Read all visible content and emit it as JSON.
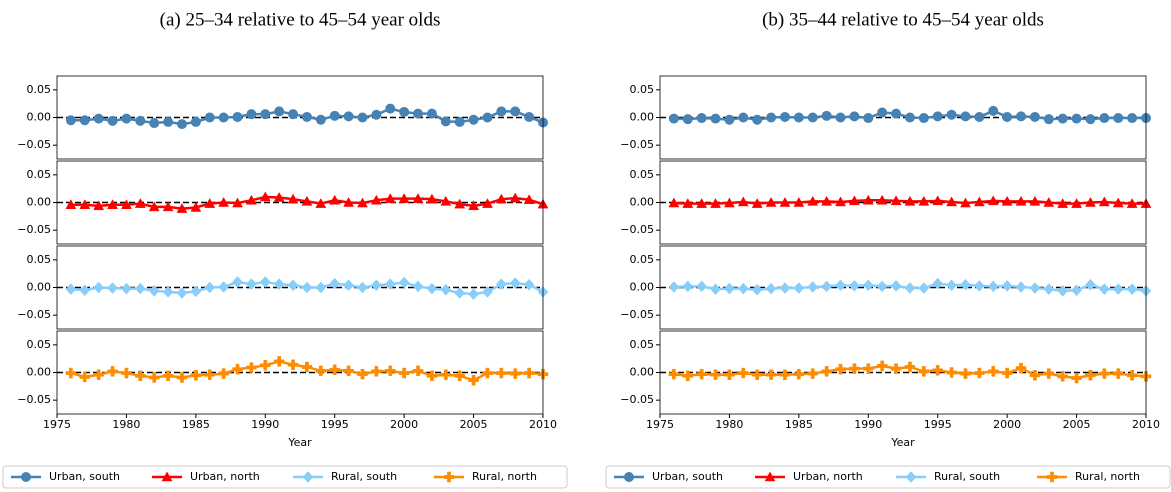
{
  "chart_data": [
    {
      "type": "line",
      "title": "(a) 25–34 relative to 45–54 year olds",
      "xlabel": "Year",
      "x": [
        1976,
        1977,
        1978,
        1979,
        1980,
        1981,
        1982,
        1983,
        1984,
        1985,
        1986,
        1987,
        1988,
        1989,
        1990,
        1991,
        1992,
        1993,
        1994,
        1995,
        1996,
        1997,
        1998,
        1999,
        2000,
        2001,
        2002,
        2003,
        2004,
        2005,
        2006,
        2007,
        2008,
        2009,
        2010
      ],
      "xlim": [
        1975,
        2010
      ],
      "xticks": [
        1975,
        1980,
        1985,
        1990,
        1995,
        2000,
        2005,
        2010
      ],
      "ylim": [
        -0.075,
        0.075
      ],
      "yticks": [
        {
          "value": -0.05,
          "label": "−0.05"
        },
        {
          "value": 0,
          "label": "0.00"
        },
        {
          "value": 0.05,
          "label": "0.05"
        }
      ],
      "hline": 0,
      "legend": "bottom",
      "series": [
        {
          "name": "Urban, south",
          "color": "#4682b4",
          "marker": "circle",
          "values": [
            -0.005,
            -0.005,
            -0.002,
            -0.006,
            -0.002,
            -0.006,
            -0.01,
            -0.008,
            -0.012,
            -0.008,
            0,
            0,
            0.001,
            0.006,
            0.006,
            0.011,
            0.006,
            0.001,
            -0.004,
            0.003,
            0.002,
            0,
            0.005,
            0.016,
            0.01,
            0.007,
            0.007,
            -0.007,
            -0.008,
            -0.004,
            0,
            0.011,
            0.011,
            0.001,
            -0.009
          ]
        },
        {
          "name": "Urban, north",
          "color": "#ff0000",
          "marker": "triangle",
          "values": [
            -0.004,
            -0.004,
            -0.006,
            -0.004,
            -0.004,
            -0.002,
            -0.008,
            -0.008,
            -0.011,
            -0.009,
            -0.002,
            0,
            -0.001,
            0.004,
            0.01,
            0.009,
            0.006,
            0.002,
            -0.002,
            0.004,
            0,
            -0.001,
            0.004,
            0.007,
            0.007,
            0.007,
            0.006,
            0.002,
            -0.003,
            -0.006,
            -0.002,
            0.006,
            0.008,
            0.005,
            -0.003
          ]
        },
        {
          "name": "Rural, south",
          "color": "#87cefa",
          "marker": "diamond",
          "values": [
            -0.003,
            -0.005,
            0,
            -0.001,
            -0.002,
            -0.002,
            -0.006,
            -0.008,
            -0.01,
            -0.007,
            0,
            0.001,
            0.01,
            0.006,
            0.01,
            0.006,
            0.004,
            0,
            0,
            0.007,
            0.004,
            0,
            0.004,
            0.006,
            0.009,
            0.002,
            -0.002,
            -0.004,
            -0.01,
            -0.012,
            -0.008,
            0.006,
            0.008,
            0.005,
            -0.008
          ]
        },
        {
          "name": "Rural, north",
          "color": "#ff8c00",
          "marker": "plus",
          "values": [
            -0.001,
            -0.008,
            -0.004,
            0.002,
            -0.001,
            -0.006,
            -0.009,
            -0.006,
            -0.009,
            -0.005,
            -0.004,
            -0.002,
            0.006,
            0.009,
            0.013,
            0.02,
            0.014,
            0.01,
            0.003,
            0.005,
            0.003,
            -0.003,
            0.002,
            0.003,
            -0.001,
            0.003,
            -0.006,
            -0.004,
            -0.006,
            -0.014,
            -0.001,
            -0.001,
            -0.002,
            -0.001,
            -0.003
          ]
        }
      ]
    },
    {
      "type": "line",
      "title": "(b) 35–44 relative to 45–54 year olds",
      "xlabel": "Year",
      "x": [
        1976,
        1977,
        1978,
        1979,
        1980,
        1981,
        1982,
        1983,
        1984,
        1985,
        1986,
        1987,
        1988,
        1989,
        1990,
        1991,
        1992,
        1993,
        1994,
        1995,
        1996,
        1997,
        1998,
        1999,
        2000,
        2001,
        2002,
        2003,
        2004,
        2005,
        2006,
        2007,
        2008,
        2009,
        2010
      ],
      "xlim": [
        1975,
        2010
      ],
      "xticks": [
        1975,
        1980,
        1985,
        1990,
        1995,
        2000,
        2005,
        2010
      ],
      "ylim": [
        -0.075,
        0.075
      ],
      "yticks": [
        {
          "value": -0.05,
          "label": "−0.05"
        },
        {
          "value": 0,
          "label": "0.00"
        },
        {
          "value": 0.05,
          "label": "0.05"
        }
      ],
      "hline": 0,
      "legend": "bottom",
      "series": [
        {
          "name": "Urban, south",
          "color": "#4682b4",
          "marker": "circle",
          "values": [
            -0.002,
            -0.003,
            -0.001,
            -0.002,
            -0.004,
            0,
            -0.004,
            0,
            0.001,
            0,
            0,
            0.003,
            0,
            0.002,
            -0.001,
            0.009,
            0.007,
            0,
            -0.001,
            0.002,
            0.005,
            0.002,
            0.001,
            0.012,
            0.001,
            0.002,
            0.001,
            -0.003,
            -0.002,
            -0.002,
            -0.003,
            -0.001,
            -0.001,
            -0.001,
            -0.001
          ]
        },
        {
          "name": "Urban, north",
          "color": "#ff0000",
          "marker": "triangle",
          "values": [
            -0.001,
            -0.002,
            -0.002,
            -0.002,
            -0.001,
            0.001,
            -0.002,
            0,
            0,
            0,
            0.002,
            0.002,
            0.001,
            0.003,
            0.004,
            0.004,
            0.003,
            0.002,
            0.002,
            0.003,
            0.001,
            -0.001,
            0.001,
            0.003,
            0.002,
            0.002,
            0.002,
            0,
            -0.002,
            -0.002,
            0,
            0.001,
            -0.001,
            -0.002,
            -0.002
          ]
        },
        {
          "name": "Rural, south",
          "color": "#87cefa",
          "marker": "diamond",
          "values": [
            0.001,
            0.002,
            0.002,
            -0.003,
            -0.002,
            -0.002,
            -0.004,
            -0.002,
            -0.001,
            -0.001,
            0.001,
            0.002,
            0.004,
            0.003,
            0.004,
            0.002,
            0.003,
            -0.001,
            -0.001,
            0.007,
            0.004,
            0.005,
            0.003,
            0.002,
            0.003,
            0.001,
            -0.001,
            -0.003,
            -0.006,
            -0.005,
            0.005,
            -0.003,
            -0.003,
            -0.003,
            -0.006
          ]
        },
        {
          "name": "Rural, north",
          "color": "#ff8c00",
          "marker": "plus",
          "values": [
            -0.003,
            -0.006,
            -0.003,
            -0.004,
            -0.004,
            -0.001,
            -0.004,
            -0.004,
            -0.004,
            -0.003,
            -0.002,
            0.002,
            0.006,
            0.007,
            0.007,
            0.012,
            0.007,
            0.01,
            0.002,
            0.004,
            0,
            -0.002,
            -0.001,
            0.002,
            -0.001,
            0.008,
            -0.005,
            -0.002,
            -0.007,
            -0.01,
            -0.005,
            -0.002,
            -0.002,
            -0.005,
            -0.007
          ]
        }
      ]
    }
  ]
}
